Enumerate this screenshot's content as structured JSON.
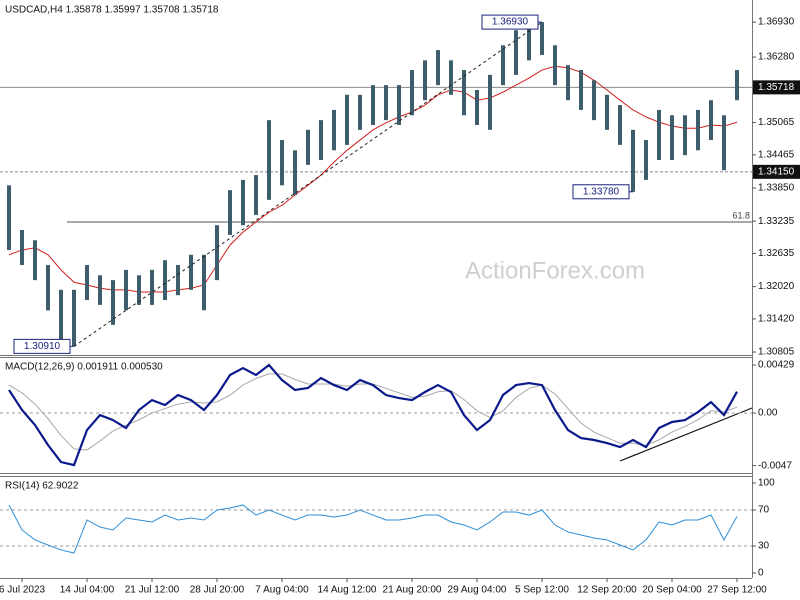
{
  "chart_data": [
    {
      "type": "range-bar",
      "title": "USDCAD,H4 1.35878 1.35997 1.35708 1.35718",
      "watermark": "ActionForex.com",
      "categories": [
        null,
        "6 Jul 2023",
        null,
        null,
        null,
        null,
        "14 Jul 04:00",
        null,
        null,
        null,
        null,
        "21 Jul 12:00",
        null,
        null,
        null,
        null,
        "28 Jul 20:00",
        null,
        null,
        null,
        null,
        "7 Aug 04:00",
        null,
        null,
        null,
        null,
        "14 Aug 12:00",
        null,
        null,
        null,
        null,
        "21 Aug 20:00",
        null,
        null,
        null,
        null,
        "29 Aug 04:00",
        null,
        null,
        null,
        null,
        "5 Sep 12:00",
        null,
        null,
        null,
        null,
        "12 Sep 20:00",
        null,
        null,
        null,
        null,
        "20 Sep 04:00",
        null,
        null,
        null,
        null,
        "27 Sep 12:00"
      ],
      "high": [
        1.339,
        1.3307,
        1.3288,
        1.3242,
        1.3196,
        1.3196,
        1.3242,
        1.3223,
        1.3214,
        1.3233,
        1.3223,
        1.3233,
        1.3251,
        1.3242,
        1.3261,
        1.3261,
        1.3316,
        1.3381,
        1.34,
        1.3409,
        1.3511,
        1.3474,
        1.3455,
        1.3493,
        1.3511,
        1.353,
        1.3558,
        1.3558,
        1.3576,
        1.3576,
        1.3576,
        1.3604,
        1.3622,
        1.3641,
        1.3622,
        1.3604,
        1.3567,
        1.3595,
        1.365,
        1.3678,
        1.3687,
        1.3693,
        1.365,
        1.3613,
        1.3604,
        1.3585,
        1.3558,
        1.3539,
        1.3493,
        1.3474,
        1.353,
        1.352,
        1.352,
        1.353,
        1.3548,
        1.352,
        1.3604
      ],
      "low": [
        1.327,
        1.3242,
        1.3214,
        1.3158,
        1.3103,
        1.3091,
        1.3177,
        1.3168,
        1.3131,
        1.3158,
        1.3168,
        1.3168,
        1.3177,
        1.3186,
        1.3196,
        1.3158,
        1.3214,
        1.3298,
        1.3316,
        1.3335,
        1.3363,
        1.339,
        1.3372,
        1.3428,
        1.3437,
        1.3455,
        1.3465,
        1.3493,
        1.3502,
        1.3511,
        1.3502,
        1.352,
        1.3548,
        1.3576,
        1.3558,
        1.352,
        1.3502,
        1.3493,
        1.3576,
        1.3595,
        1.3622,
        1.3632,
        1.3576,
        1.3548,
        1.353,
        1.3511,
        1.3493,
        1.3465,
        1.3378,
        1.34,
        1.3437,
        1.3437,
        1.3446,
        1.3455,
        1.3474,
        1.3418,
        1.3548
      ],
      "color": "#3e5d6b",
      "ma": {
        "color": "#d21f1f",
        "values": [
          1.3261,
          1.327,
          1.3274,
          1.3261,
          1.3233,
          1.321,
          1.3205,
          1.3199,
          1.3196,
          1.3196,
          1.3192,
          1.3192,
          1.3192,
          1.3196,
          1.3199,
          1.3205,
          1.3242,
          1.3279,
          1.3303,
          1.3322,
          1.334,
          1.3353,
          1.3372,
          1.339,
          1.3409,
          1.3433,
          1.3455,
          1.3474,
          1.3493,
          1.3506,
          1.3517,
          1.3526,
          1.3539,
          1.3558,
          1.3567,
          1.3563,
          1.3548,
          1.3552,
          1.3563,
          1.3576,
          1.3589,
          1.3604,
          1.3611,
          1.3608,
          1.36,
          1.3585,
          1.3567,
          1.3548,
          1.353,
          1.3517,
          1.3507,
          1.35,
          1.3496,
          1.3496,
          1.3502,
          1.35,
          1.3507
        ]
      },
      "ylim": [
        1.3075,
        1.3734
      ],
      "yticks": [
        {
          "value": 1.3693,
          "label": "1.36930"
        },
        {
          "value": 1.3628,
          "label": "1.36280"
        },
        {
          "value": 1.35065,
          "label": "1.35065"
        },
        {
          "value": 1.34465,
          "label": "1.34465"
        },
        {
          "value": 1.3385,
          "label": "1.33850"
        },
        {
          "value": 1.33235,
          "label": "1.33235"
        },
        {
          "value": 1.32635,
          "label": "1.32635"
        },
        {
          "value": 1.3202,
          "label": "1.32020"
        },
        {
          "value": 1.3142,
          "label": "1.31420"
        },
        {
          "value": 1.30805,
          "label": "1.30805"
        }
      ],
      "levels": [
        {
          "value": 1.35718,
          "label": "1.35718",
          "line": "solid"
        },
        {
          "value": 1.3415,
          "label": "1.34150",
          "line": "dashed"
        }
      ],
      "fib": {
        "value": 1.3322,
        "label": "61.8"
      },
      "callouts": [
        {
          "value": 1.3693,
          "label": "1.36930"
        },
        {
          "value": 1.3378,
          "label": "1.33780"
        },
        {
          "value": 1.3091,
          "label": "1.30910"
        }
      ]
    },
    {
      "type": "line",
      "title": "MACD(12,26,9) 0.001911 0.000530",
      "series": [
        {
          "color": "#0a1a8c",
          "values": [
            0.00206,
            0.00027,
            -0.00107,
            -0.00286,
            -0.00438,
            -0.00465,
            -0.00152,
            -0.00018,
            -0.00063,
            -0.00134,
            0.00027,
            0.00116,
            0.00072,
            0.00161,
            0.00116,
            0.00027,
            0.00161,
            0.0034,
            0.00402,
            0.0034,
            0.00429,
            0.00295,
            0.00206,
            0.00224,
            0.00313,
            0.0025,
            0.00206,
            0.00295,
            0.0025,
            0.00161,
            0.00134,
            0.00116,
            0.00188,
            0.0025,
            0.00188,
            -0.00018,
            -0.00152,
            -0.00063,
            0.00161,
            0.0025,
            0.00268,
            0.0025,
            0.00027,
            -0.00152,
            -0.00224,
            -0.00241,
            -0.00268,
            -0.00304,
            -0.00241,
            -0.00304,
            -0.00134,
            -0.0008,
            -0.00063,
            9e-05,
            0.00098,
            -0.00018,
            0.00191
          ]
        },
        {
          "color": "#a8a8a8",
          "values": [
            0.0025,
            0.0018,
            0.0008,
            -0.0005,
            -0.002,
            -0.0032,
            -0.0033,
            -0.0025,
            -0.0016,
            -0.0011,
            -0.0006,
            0,
            0.0004,
            0.0008,
            0.001,
            0.0009,
            0.001,
            0.0016,
            0.0025,
            0.0031,
            0.0035,
            0.0035,
            0.003,
            0.0026,
            0.0026,
            0.0026,
            0.0024,
            0.0026,
            0.0026,
            0.0022,
            0.0018,
            0.0014,
            0.0015,
            0.0019,
            0.002,
            0.0012,
            0.0002,
            -0.0004,
            0.0002,
            0.0014,
            0.0022,
            0.0025,
            0.0017,
            0.0004,
            -0.0009,
            -0.0017,
            -0.0022,
            -0.0027,
            -0.0027,
            -0.0029,
            -0.0024,
            -0.0017,
            -0.0012,
            -0.0006,
            0.0002,
            0.0001,
            0.00053
          ]
        }
      ],
      "ylim": [
        -0.00536,
        0.00492
      ],
      "yticks": [
        0.00429,
        {
          "value": 0,
          "label": "0.00"
        },
        -0.0047
      ],
      "levels": [
        0
      ]
    },
    {
      "type": "line",
      "title": "RSI(14) 62.9022",
      "series": [
        {
          "color": "#2f8fd8",
          "values": [
            75.6,
            47.8,
            36.7,
            31.1,
            25.6,
            22.2,
            58.9,
            51.1,
            47.8,
            61.1,
            58.9,
            56.7,
            64.4,
            58.9,
            61.1,
            58.9,
            70,
            72.2,
            75.6,
            64.4,
            70,
            64.4,
            58.9,
            64.4,
            64.4,
            62.2,
            64.4,
            70,
            64.4,
            58.9,
            58.9,
            61.1,
            64.4,
            64.4,
            56.7,
            53.3,
            47.8,
            56.7,
            67.8,
            67.8,
            64.4,
            70,
            53.3,
            45.6,
            42.2,
            38.9,
            36.7,
            31.1,
            25.6,
            36.7,
            56.7,
            53.3,
            58.9,
            58.9,
            64.4,
            36.7,
            62.9
          ]
        }
      ],
      "ylim": [
        -5.6,
        106.7
      ],
      "yticks": [
        100,
        70,
        30,
        0
      ],
      "levels": [
        30,
        70
      ]
    }
  ]
}
